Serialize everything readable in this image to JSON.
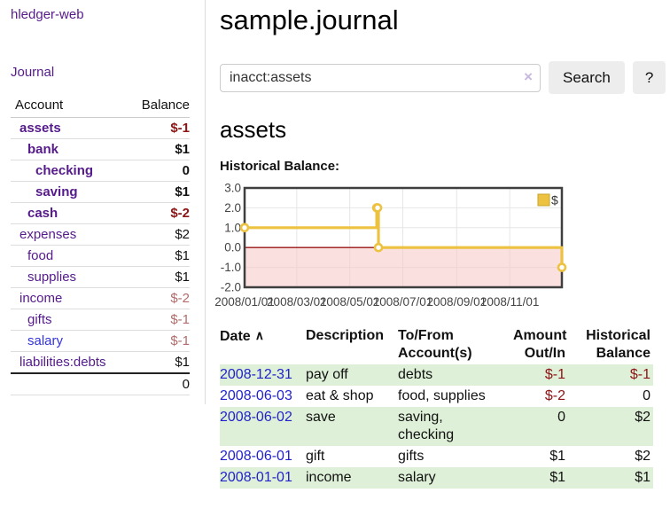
{
  "app": {
    "title_link": "hledger-web",
    "nav": {
      "journal": "Journal"
    }
  },
  "sidebar": {
    "headers": {
      "account": "Account",
      "balance": "Balance"
    },
    "accounts": [
      {
        "name": "assets",
        "balance": "$-1",
        "indent": 0,
        "bold": true,
        "balance_class": "neg"
      },
      {
        "name": "bank",
        "balance": "$1",
        "indent": 1,
        "bold": true,
        "balance_class": ""
      },
      {
        "name": "checking",
        "balance": "0",
        "indent": 2,
        "bold": true,
        "balance_class": ""
      },
      {
        "name": "saving",
        "balance": "$1",
        "indent": 2,
        "bold": true,
        "balance_class": ""
      },
      {
        "name": "cash",
        "balance": "$-2",
        "indent": 1,
        "bold": true,
        "balance_class": "neg"
      },
      {
        "name": "expenses",
        "balance": "$2",
        "indent": 0,
        "bold": false,
        "balance_class": ""
      },
      {
        "name": "food",
        "balance": "$1",
        "indent": 1,
        "bold": false,
        "balance_class": ""
      },
      {
        "name": "supplies",
        "balance": "$1",
        "indent": 1,
        "bold": false,
        "balance_class": ""
      },
      {
        "name": "income",
        "balance": "$-2",
        "indent": 0,
        "bold": false,
        "balance_class": "neg-muted"
      },
      {
        "name": "gifts",
        "balance": "$-1",
        "indent": 1,
        "bold": false,
        "balance_class": "neg-muted"
      },
      {
        "name": "salary",
        "balance": "$-1",
        "indent": 1,
        "bold": false,
        "balance_class": "neg-muted",
        "link_blue": true
      },
      {
        "name": "liabilities:debts",
        "balance": "$1",
        "indent": 0,
        "bold": false,
        "balance_class": ""
      }
    ],
    "total": "0"
  },
  "main": {
    "title": "sample.journal",
    "search": {
      "value": "inacct:assets",
      "clear_icon": "×",
      "search_button": "Search",
      "help_button": "?"
    },
    "account_heading": "assets",
    "chart_label": "Historical Balance:"
  },
  "chart_data": {
    "type": "line",
    "step": true,
    "title": "Historical Balance:",
    "series": [
      {
        "name": "$",
        "color": "#edc240",
        "points": [
          [
            "2008-01-01",
            1
          ],
          [
            "2008-06-01",
            2
          ],
          [
            "2008-06-02",
            2
          ],
          [
            "2008-06-03",
            0
          ],
          [
            "2008-12-31",
            -1
          ]
        ]
      }
    ],
    "x_range": [
      "2008-01-01",
      "2008-12-31"
    ],
    "x_ticks": [
      "2008/01/01",
      "2008/03/01",
      "2008/05/01",
      "2008/07/01",
      "2008/09/01",
      "2008/11/01"
    ],
    "y_ticks": [
      3.0,
      2.0,
      1.0,
      0.0,
      -1.0,
      -2.0
    ],
    "ylim": [
      -2,
      3
    ],
    "grid": true,
    "legend_position": "top-right",
    "grid_color": "#e6e6e6",
    "border_color": "#3f3f3f",
    "zero_line_color": "#991414",
    "negative_region_color": "rgba(247,198,198,0.55)",
    "label_color": "#444444"
  },
  "transactions": {
    "headers": {
      "date": "Date",
      "sort_icon": "∧",
      "description": "Description",
      "accounts": "To/From\nAccount(s)",
      "amount": "Amount\nOut/In",
      "balance": "Historical\nBalance"
    },
    "rows": [
      {
        "date": "2008-12-31",
        "description": "pay off",
        "accounts": "debts",
        "amount": "$-1",
        "balance": "$-1"
      },
      {
        "date": "2008-06-03",
        "description": "eat & shop",
        "accounts": "food, supplies",
        "amount": "$-2",
        "balance": "0"
      },
      {
        "date": "2008-06-02",
        "description": "save",
        "accounts": "saving,\nchecking",
        "amount": "0",
        "balance": "$2"
      },
      {
        "date": "2008-06-01",
        "description": "gift",
        "accounts": "gifts",
        "amount": "$1",
        "balance": "$2"
      },
      {
        "date": "2008-01-01",
        "description": "income",
        "accounts": "salary",
        "amount": "$1",
        "balance": "$1"
      }
    ]
  }
}
